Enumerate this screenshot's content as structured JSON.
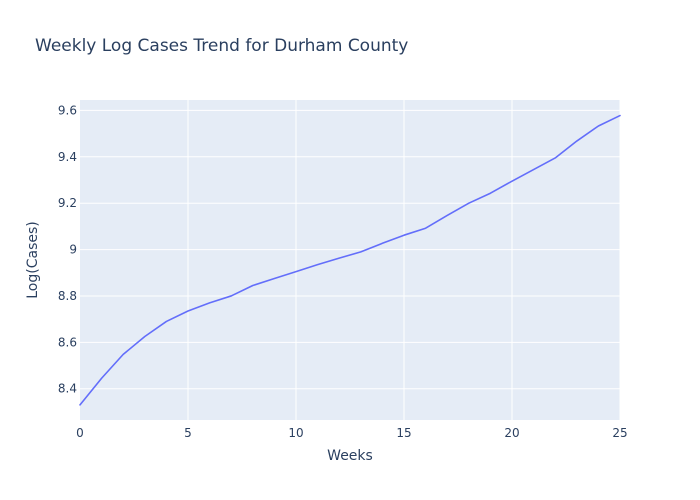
{
  "chart_data": {
    "type": "line",
    "title": "Weekly Log Cases Trend for Durham County",
    "xlabel": "Weeks",
    "ylabel": "Log(Cases)",
    "xlim": [
      0,
      25
    ],
    "ylim": [
      8.265,
      9.645
    ],
    "x_ticks": [
      0,
      5,
      10,
      15,
      20,
      25
    ],
    "x_tick_labels": [
      "0",
      "5",
      "10",
      "15",
      "20",
      "25"
    ],
    "y_ticks": [
      8.4,
      8.6,
      8.8,
      9.0,
      9.2,
      9.4,
      9.6
    ],
    "y_tick_labels": [
      "8.4",
      "8.6",
      "8.8",
      "9",
      "9.2",
      "9.4",
      "9.6"
    ],
    "grid": true,
    "legend": "none",
    "series": [
      {
        "color": "#636efa",
        "x": [
          0,
          1,
          2,
          3,
          4,
          5,
          6,
          7,
          8,
          9,
          10,
          11,
          12,
          13,
          14,
          15,
          16,
          17,
          18,
          19,
          20,
          21,
          22,
          23,
          24,
          25
        ],
        "y": [
          8.33,
          8.445,
          8.548,
          8.625,
          8.69,
          8.735,
          8.77,
          8.8,
          8.845,
          8.875,
          8.905,
          8.935,
          8.963,
          8.99,
          9.027,
          9.062,
          9.092,
          9.147,
          9.2,
          9.243,
          9.295,
          9.345,
          9.395,
          9.468,
          9.533,
          9.578
        ]
      }
    ]
  }
}
